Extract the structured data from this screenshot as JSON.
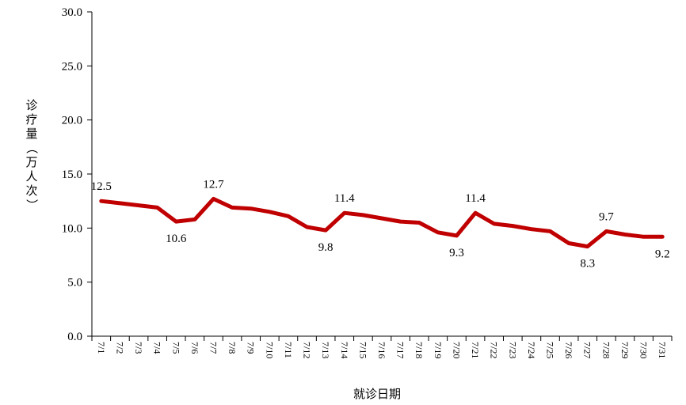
{
  "chart_data": {
    "type": "line",
    "title": "",
    "xlabel": "就诊日期",
    "ylabel": "诊疗量（万人次）",
    "ylim": [
      0,
      30
    ],
    "yticks": [
      "0.0",
      "5.0",
      "10.0",
      "15.0",
      "20.0",
      "25.0",
      "30.0"
    ],
    "grid": false,
    "legend": "none",
    "line_color": "#c00000",
    "categories": [
      "7/1",
      "7/2",
      "7/3",
      "7/4",
      "7/5",
      "7/6",
      "7/7",
      "7/8",
      "7/9",
      "7/10",
      "7/11",
      "7/12",
      "7/13",
      "7/14",
      "7/15",
      "7/16",
      "7/17",
      "7/18",
      "7/19",
      "7/20",
      "7/21",
      "7/22",
      "7/23",
      "7/24",
      "7/25",
      "7/26",
      "7/27",
      "7/28",
      "7/29",
      "7/30",
      "7/31"
    ],
    "series": [
      {
        "values": [
          12.5,
          12.3,
          12.1,
          11.9,
          10.6,
          10.8,
          12.7,
          11.9,
          11.8,
          11.5,
          11.1,
          10.1,
          9.8,
          11.4,
          11.2,
          10.9,
          10.6,
          10.5,
          9.6,
          9.3,
          11.4,
          10.4,
          10.2,
          9.9,
          9.7,
          8.6,
          8.3,
          9.7,
          9.4,
          9.2,
          9.2
        ]
      }
    ],
    "data_labels": [
      {
        "index": 0,
        "text": "12.5",
        "pos": "above"
      },
      {
        "index": 4,
        "text": "10.6",
        "pos": "below"
      },
      {
        "index": 6,
        "text": "12.7",
        "pos": "above"
      },
      {
        "index": 12,
        "text": "9.8",
        "pos": "below"
      },
      {
        "index": 13,
        "text": "11.4",
        "pos": "above"
      },
      {
        "index": 19,
        "text": "9.3",
        "pos": "below"
      },
      {
        "index": 20,
        "text": "11.4",
        "pos": "above"
      },
      {
        "index": 26,
        "text": "8.3",
        "pos": "below"
      },
      {
        "index": 27,
        "text": "9.7",
        "pos": "above"
      },
      {
        "index": 30,
        "text": "9.2",
        "pos": "below"
      }
    ]
  }
}
